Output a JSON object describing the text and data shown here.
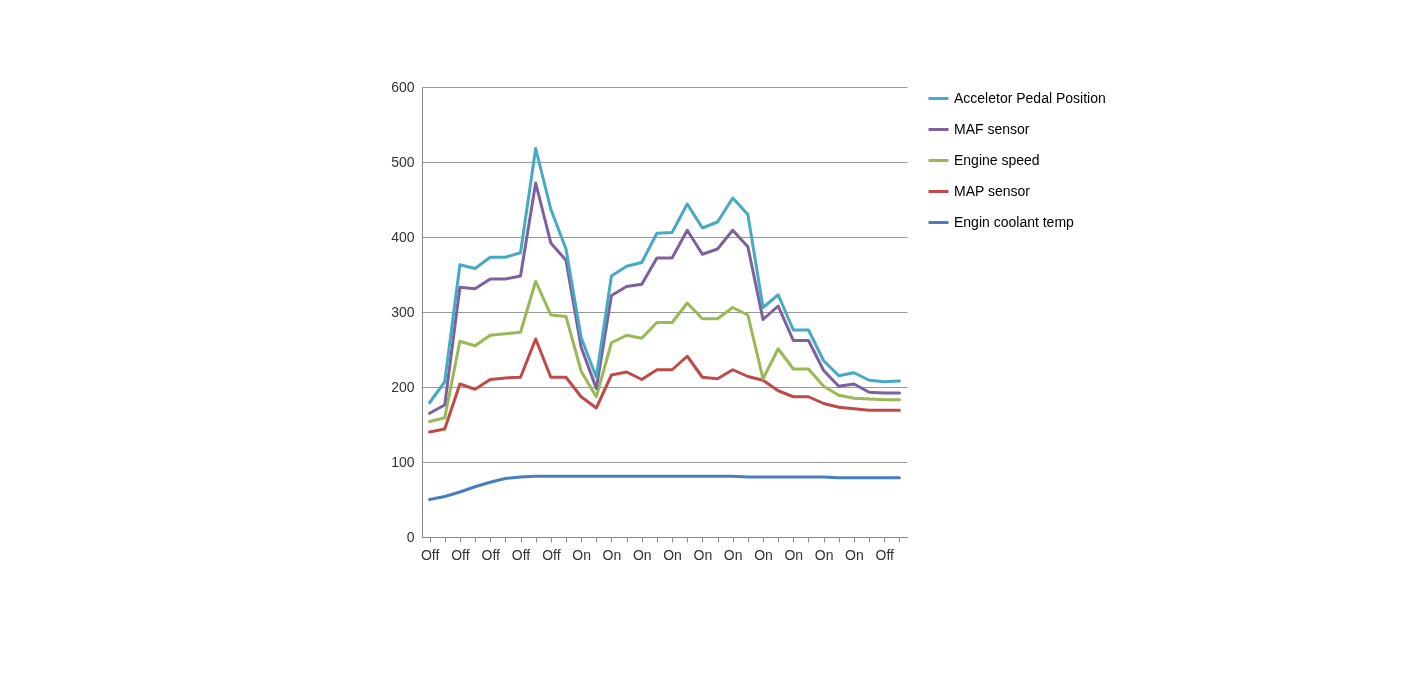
{
  "chart_data": {
    "type": "line",
    "categories": [
      "Off",
      null,
      "Off",
      null,
      "Off",
      null,
      "Off",
      null,
      "Off",
      null,
      "On",
      null,
      "On",
      null,
      "On",
      null,
      "On",
      null,
      "On",
      null,
      "On",
      null,
      "On",
      null,
      "On",
      null,
      "On",
      null,
      "On",
      null,
      "Off",
      null
    ],
    "series": [
      {
        "name": "Engin coolant temp",
        "color": "#4a7ebb",
        "values": [
          50,
          54,
          60,
          67,
          73,
          78,
          80,
          81,
          81,
          81,
          81,
          81,
          81,
          81,
          81,
          81,
          81,
          81,
          81,
          81,
          81,
          80,
          80,
          80,
          80,
          80,
          80,
          79,
          79,
          79,
          79,
          79
        ]
      },
      {
        "name": "MAP sensor",
        "color": "#be4b48",
        "values": [
          140,
          144,
          204,
          197,
          210,
          212,
          213,
          264,
          213,
          213,
          187,
          172,
          216,
          220,
          210,
          223,
          223,
          241,
          213,
          211,
          223,
          214,
          209,
          195,
          187,
          187,
          178,
          173,
          171,
          169,
          169,
          169
        ]
      },
      {
        "name": "Engine speed",
        "color": "#98b954",
        "values": [
          154,
          159,
          261,
          255,
          269,
          271,
          273,
          341,
          296,
          294,
          221,
          187,
          259,
          269,
          265,
          286,
          286,
          312,
          291,
          291,
          306,
          296,
          211,
          251,
          224,
          224,
          201,
          189,
          185,
          184,
          183,
          183
        ]
      },
      {
        "name": "MAF sensor",
        "color": "#7d60a0",
        "values": [
          165,
          176,
          333,
          331,
          344,
          344,
          348,
          472,
          392,
          369,
          253,
          198,
          322,
          334,
          337,
          372,
          372,
          409,
          377,
          384,
          409,
          387,
          290,
          308,
          262,
          262,
          222,
          201,
          204,
          193,
          192,
          192
        ]
      },
      {
        "name": "Acceletor Pedal Position",
        "color": "#46aac5",
        "values": [
          179,
          207,
          363,
          358,
          373,
          373,
          379,
          518,
          437,
          384,
          266,
          213,
          348,
          361,
          366,
          405,
          406,
          444,
          412,
          420,
          452,
          430,
          306,
          323,
          276,
          276,
          235,
          215,
          219,
          209,
          207,
          208
        ]
      }
    ],
    "ylim": [
      0,
      600
    ],
    "yticks": [
      0,
      100,
      200,
      300,
      400,
      500,
      600
    ],
    "grid": "y",
    "legend": "right",
    "marker": "none",
    "line_style": "solid"
  }
}
